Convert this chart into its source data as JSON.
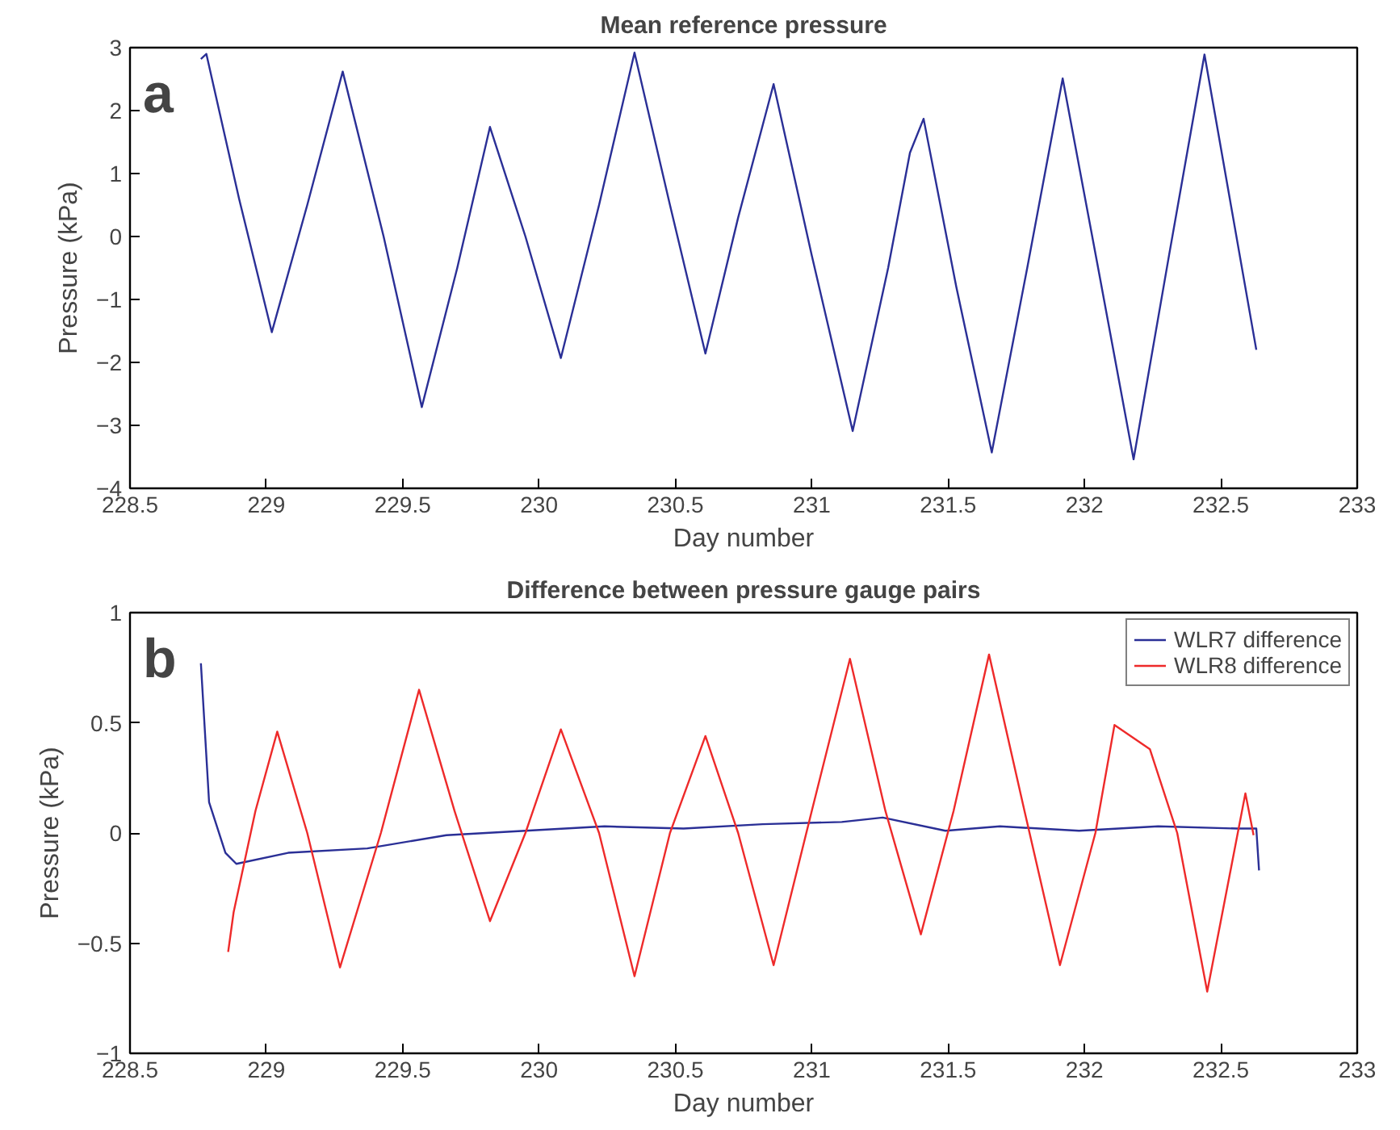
{
  "chart_data": [
    {
      "type": "line",
      "title": "Mean reference pressure",
      "xlabel": "Day number",
      "ylabel": "Pressure (kPa)",
      "annotations": [
        "a"
      ],
      "xlim": [
        228.5,
        233
      ],
      "xticks": [
        228.5,
        229,
        229.5,
        230,
        230.5,
        231,
        231.5,
        232,
        232.5,
        233
      ],
      "ylim": [
        -4,
        3
      ],
      "yticks": [
        -4,
        -3,
        -2,
        -1,
        0,
        1,
        2,
        3
      ],
      "grid": false,
      "legend": false,
      "series": [
        {
          "color": "#2a2f96",
          "x": [
            228.76,
            228.78,
            228.9,
            229.02,
            229.15,
            229.28,
            229.43,
            229.57,
            229.7,
            229.82,
            229.95,
            230.08,
            230.22,
            230.35,
            230.48,
            230.61,
            230.73,
            230.86,
            231.0,
            231.15,
            231.28,
            231.36,
            231.41,
            231.53,
            231.66,
            231.79,
            231.92,
            232.05,
            232.18,
            232.31,
            232.44,
            232.63
          ],
          "values": [
            2.82,
            2.9,
            0.6,
            -1.52,
            0.5,
            2.62,
            0,
            -2.71,
            -0.5,
            1.74,
            0,
            -1.93,
            0.5,
            2.92,
            0.5,
            -1.86,
            0.3,
            2.42,
            -0.3,
            -3.09,
            -0.5,
            1.33,
            1.87,
            -0.8,
            -3.43,
            -0.5,
            2.51,
            -0.5,
            -3.54,
            -0.3,
            2.89,
            -1.8
          ]
        }
      ]
    },
    {
      "type": "line",
      "title": "Difference between pressure gauge pairs",
      "xlabel": "Day number",
      "ylabel": "Pressure (kPa)",
      "annotations": [
        "b"
      ],
      "xlim": [
        228.5,
        233
      ],
      "xticks": [
        228.5,
        229,
        229.5,
        230,
        230.5,
        231,
        231.5,
        232,
        232.5,
        233
      ],
      "ylim": [
        -1,
        1
      ],
      "yticks": [
        -1,
        -0.5,
        0,
        0.5,
        1
      ],
      "grid": false,
      "legend": "top right",
      "series": [
        {
          "name": "WLR7 difference",
          "color": "#2a2f96",
          "x": [
            228.76,
            228.79,
            228.85,
            228.89,
            229.08,
            229.37,
            229.66,
            229.95,
            230.24,
            230.53,
            230.82,
            231.11,
            231.26,
            231.49,
            231.69,
            231.98,
            232.27,
            232.56,
            232.63,
            232.64
          ],
          "values": [
            0.77,
            0.14,
            -0.09,
            -0.14,
            -0.09,
            -0.07,
            -0.01,
            0.01,
            0.03,
            0.02,
            0.04,
            0.05,
            0.07,
            0.01,
            0.03,
            0.01,
            0.03,
            0.02,
            0.02,
            -0.17
          ]
        },
        {
          "name": "WLR8 difference",
          "color": "#ee2a2a",
          "x": [
            228.86,
            228.88,
            228.96,
            229.04,
            229.15,
            229.27,
            229.42,
            229.56,
            229.69,
            229.82,
            229.95,
            230.08,
            230.22,
            230.35,
            230.48,
            230.61,
            230.73,
            230.86,
            231.0,
            231.14,
            231.27,
            231.4,
            231.52,
            231.65,
            231.78,
            231.91,
            232.04,
            232.11,
            232.24,
            232.34,
            232.45,
            232.59,
            232.62
          ],
          "values": [
            -0.54,
            -0.36,
            0.1,
            0.46,
            0,
            -0.61,
            0,
            0.65,
            0.1,
            -0.4,
            0,
            0.47,
            0,
            -0.65,
            0,
            0.44,
            0,
            -0.6,
            0.1,
            0.79,
            0.1,
            -0.46,
            0.1,
            0.81,
            0.1,
            -0.6,
            0,
            0.49,
            0.38,
            0,
            -0.72,
            0.18,
            -0.01
          ]
        }
      ]
    }
  ]
}
